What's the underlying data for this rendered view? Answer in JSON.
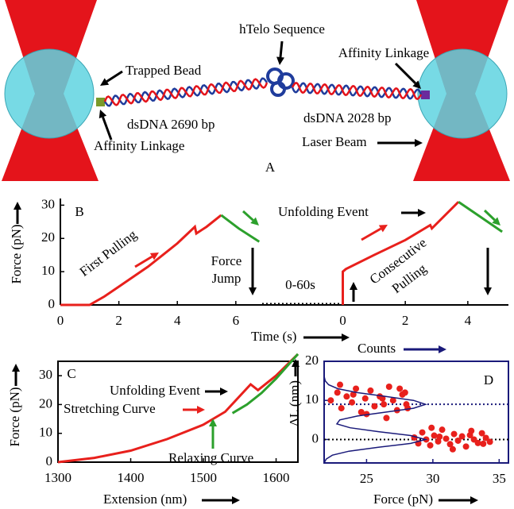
{
  "illustration": {
    "panel_label": "A",
    "labels": [
      "Trapped Bead",
      "Affinity Linkage",
      "dsDNA 2690 bp",
      "hTelo Sequence",
      "Affinity Linkage",
      "dsDNA 2028 bp",
      "Laser Beam"
    ]
  },
  "chart_data": [
    {
      "type": "line",
      "panel_label": "B",
      "xlabel": "Time (s)",
      "ylabel": "Force (pN)",
      "xlim": [
        0,
        7.2
      ],
      "xticks": [
        0,
        2,
        4,
        6
      ],
      "x2lim": [
        -2.3,
        5.3
      ],
      "x2ticks": [
        0,
        2,
        4
      ],
      "ylim": [
        0,
        32
      ],
      "yticks": [
        0,
        10,
        20,
        30
      ],
      "annotations": [
        {
          "text": "First Pulling"
        },
        {
          "lines": [
            "Force",
            "Jump"
          ]
        },
        {
          "text": "0-60s"
        },
        {
          "text": "Unfolding Event"
        },
        {
          "lines": [
            "Consecutive",
            "Pulling"
          ]
        }
      ],
      "series": [
        {
          "color": "#e8201c",
          "x": [
            0,
            1,
            1.5,
            2,
            2.5,
            3,
            3.5,
            4,
            4.6,
            4.65,
            5.0,
            5.5
          ],
          "values": [
            0,
            0,
            2.5,
            5.5,
            8.5,
            11.5,
            15,
            18.5,
            23.5,
            21.5,
            23.5,
            27
          ]
        },
        {
          "color": "#2ca02c",
          "x": [
            5.5,
            6.1,
            6.8
          ],
          "values": [
            27,
            23,
            19
          ]
        },
        {
          "color": "#e8201c",
          "axis": "x2",
          "x": [
            0,
            0,
            0.1,
            1,
            2,
            2.8,
            2.85,
            3.7
          ],
          "values": [
            0,
            10,
            10.8,
            15,
            19.5,
            24,
            23,
            31
          ]
        },
        {
          "color": "#2ca02c",
          "axis": "x2",
          "x": [
            3.7,
            4.4,
            5.1
          ],
          "values": [
            31,
            26.5,
            22
          ]
        }
      ]
    },
    {
      "type": "line",
      "panel_label": "C",
      "xlabel": "Extension (nm)",
      "ylabel": "Force (pN)",
      "xlim": [
        1300,
        1630
      ],
      "xticks": [
        1300,
        1400,
        1500,
        1600
      ],
      "ylim": [
        0,
        35
      ],
      "yticks": [
        0,
        10,
        20,
        30
      ],
      "annotations": [
        {
          "text": "Unfolding Event"
        },
        {
          "text": "Stretching Curve",
          "color": "#e8201c"
        },
        {
          "text": "Relaxing Curve",
          "color": "#2ca02c"
        }
      ],
      "series": [
        {
          "color": "#e8201c",
          "x": [
            1300,
            1350,
            1400,
            1450,
            1500,
            1530,
            1565,
            1575,
            1600,
            1630
          ],
          "values": [
            0,
            1.5,
            4,
            8,
            13,
            17.5,
            27,
            25,
            30,
            37.5
          ]
        },
        {
          "color": "#2ca02c",
          "x": [
            1540,
            1560,
            1580,
            1600,
            1630
          ],
          "values": [
            17,
            20,
            24,
            29,
            37.5
          ]
        }
      ]
    },
    {
      "type": "scatter",
      "panel_label": "D",
      "xlabel": "Force (pN)",
      "ylabel": "ΔL (nm)",
      "x2label": "Counts",
      "xlim": [
        21.8,
        35.7
      ],
      "xticks": [
        25,
        30,
        35
      ],
      "x2lim": [
        0,
        1
      ],
      "ylim": [
        -6,
        20
      ],
      "yticks": [
        0,
        10,
        20
      ],
      "frame_color": "#1a1a7a",
      "hlines": [
        {
          "value": 9,
          "color": "#1a1a7a"
        },
        {
          "value": 0,
          "color": "#000000"
        }
      ],
      "series": [
        {
          "color": "#e8201c",
          "x": [
            22.3,
            22.8,
            23.1,
            23.5,
            23.9,
            24.2,
            24.6,
            24.9,
            25.3,
            25.6,
            26.0,
            26.3,
            26.7,
            27.0,
            27.3,
            27.7,
            28.0,
            27.9,
            28.1,
            26.2,
            23.0,
            25.0,
            26.5,
            24.0,
            27.5,
            28.6,
            28.9,
            29.2,
            29.5,
            29.8,
            30.1,
            30.4,
            30.7,
            31.0,
            31.3,
            31.6,
            31.9,
            32.2,
            32.5,
            32.8,
            33.1,
            33.4,
            33.7,
            34.0,
            34.3,
            29.9,
            31.5,
            32.9,
            30.5,
            33.8
          ],
          "values": [
            10,
            12,
            8,
            11,
            9.5,
            13,
            7,
            10.5,
            12.5,
            8.5,
            11,
            9,
            13.5,
            10,
            7.5,
            11.5,
            9,
            12,
            8,
            10.5,
            14,
            6.5,
            5.5,
            11.5,
            13,
            0.5,
            -1,
            1.8,
            0,
            -1.5,
            1,
            -0.5,
            2.5,
            0.2,
            -1.2,
            1.4,
            -0.3,
            0.8,
            -1.8,
            1.1,
            0,
            -0.9,
            1.6,
            0.4,
            -0.6,
            3,
            -2.5,
            2.2,
            0.7,
            -1.1
          ]
        },
        {
          "color": "#1a1a7a",
          "type": "line",
          "axis": "x2",
          "x": [
            0,
            0.011,
            0.045,
            0.135,
            0.294,
            0.47,
            0.55,
            0.47,
            0.295,
            0.141,
            0.069,
            0.085,
            0.181,
            0.334,
            0.485,
            0.55,
            0.485,
            0.334,
            0.179,
            0.074,
            0.024,
            0.006,
            0.001,
            0,
            0,
            0,
            0
          ],
          "values": [
            -6,
            -5,
            -4,
            -3,
            -2,
            -1,
            0,
            1,
            2,
            3,
            4,
            5,
            6,
            7,
            8,
            9,
            10,
            11,
            12,
            13,
            14,
            15,
            16,
            17,
            18,
            19,
            20
          ]
        }
      ]
    }
  ]
}
